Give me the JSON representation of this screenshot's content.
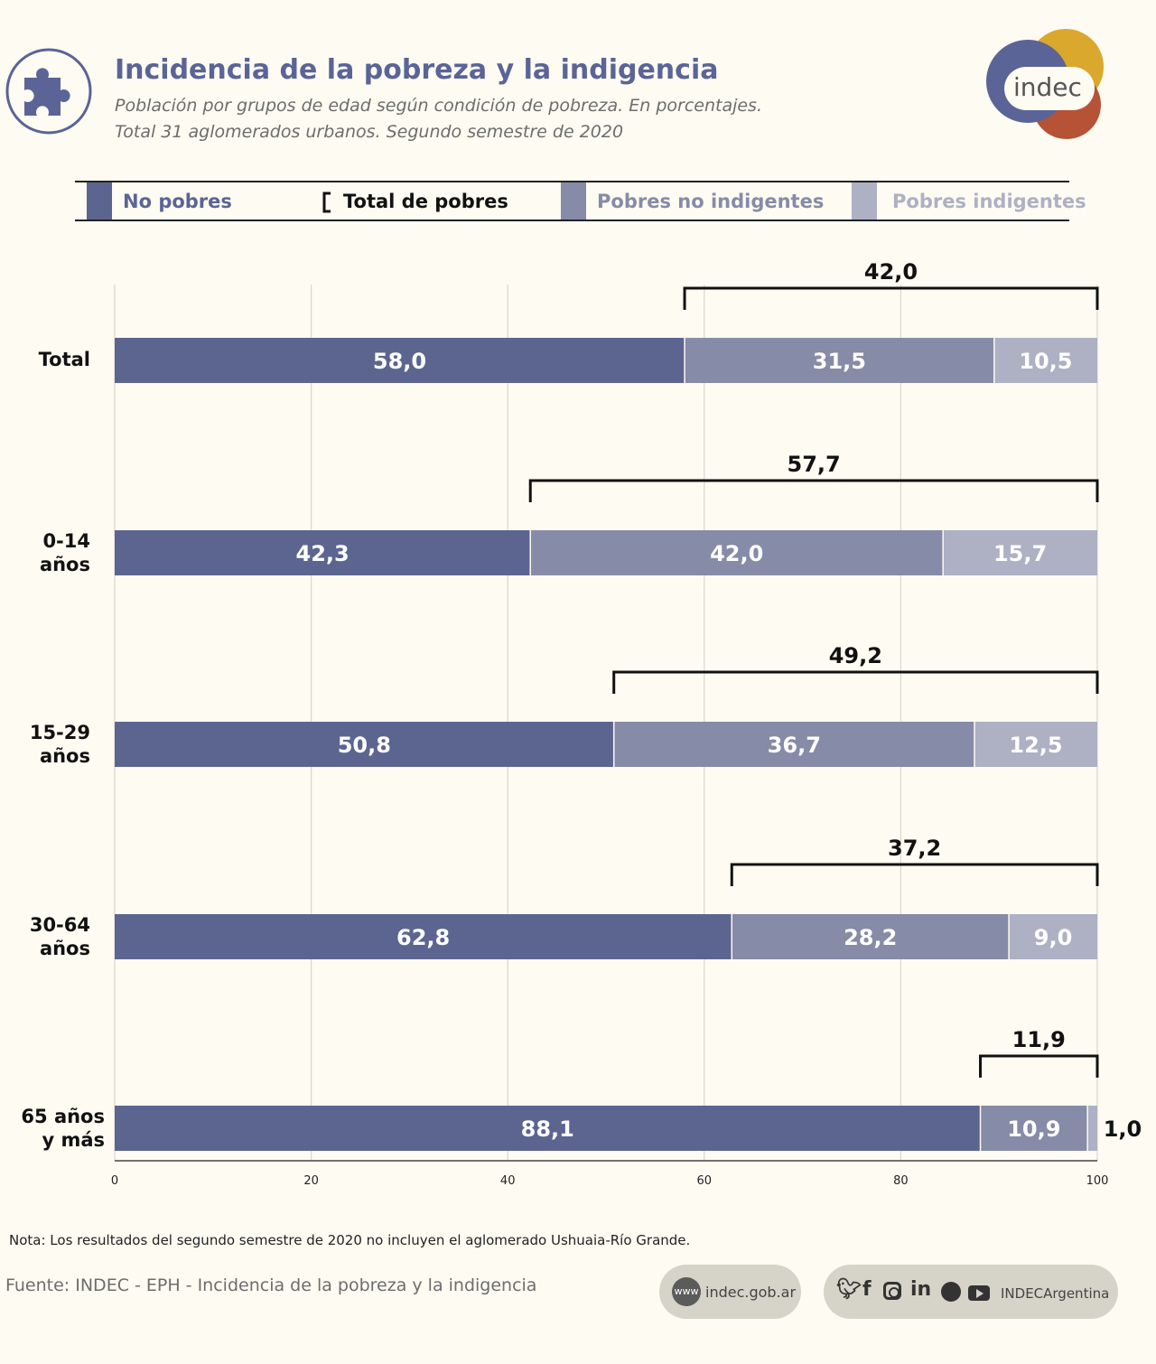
{
  "header": {
    "title": "Incidencia de la pobreza y la indigencia",
    "subtitle_1": "Población por grupos de edad según condición de pobreza. En porcentajes.",
    "subtitle_2": "Total 31 aglomerados urbanos. Segundo semestre de 2020",
    "logo_text": "indec"
  },
  "legend": {
    "no_pobres": "No pobres",
    "total_pobres": "Total de pobres",
    "pobres_no_indigentes": "Pobres no indigentes",
    "pobres_indigentes": "Pobres indigentes"
  },
  "colors": {
    "no_pobres": "#5c6590",
    "pobres_no_indigentes": "#868ba7",
    "pobres_indigentes": "#aeb0c3",
    "title": "#5a6497",
    "background": "#fdfbf2"
  },
  "chart_data": {
    "type": "bar",
    "orientation": "horizontal",
    "stacked": true,
    "categories": [
      [
        "Total"
      ],
      [
        "0-14",
        "años"
      ],
      [
        "15-29",
        "años"
      ],
      [
        "30-64",
        "años"
      ],
      [
        "65 años",
        "y más"
      ]
    ],
    "series": [
      {
        "name": "No pobres",
        "values": [
          "58,0",
          "42,3",
          "50,8",
          "62,8",
          "88,1"
        ]
      },
      {
        "name": "Pobres no indigentes",
        "values": [
          "31,5",
          "42,0",
          "36,7",
          "28,2",
          "10,9"
        ]
      },
      {
        "name": "Pobres indigentes",
        "values": [
          "10,5",
          "15,7",
          "12,5",
          "9,0",
          "1,0"
        ]
      }
    ],
    "totals": {
      "name": "Total de pobres",
      "values": [
        "42,0",
        "57,7",
        "49,2",
        "37,2",
        "11,9"
      ]
    },
    "xlim": [
      0,
      100
    ],
    "xticks": [
      "0",
      "20",
      "40",
      "60",
      "80",
      "100"
    ],
    "grid": true
  },
  "footer": {
    "nota": "Nota: Los resultados del segundo semestre de 2020 no incluyen el aglomerado Ushuaia-Río Grande.",
    "fuente": "Fuente: INDEC - EPH - Incidencia de la pobreza y la indigencia",
    "web_prefix": "www",
    "web": "indec.gob.ar",
    "social_handle": "INDECArgentina"
  },
  "icons": [
    "puzzle-icon",
    "www-icon",
    "twitter-icon",
    "facebook-icon",
    "instagram-icon",
    "linkedin-icon",
    "spotify-icon",
    "youtube-icon"
  ]
}
